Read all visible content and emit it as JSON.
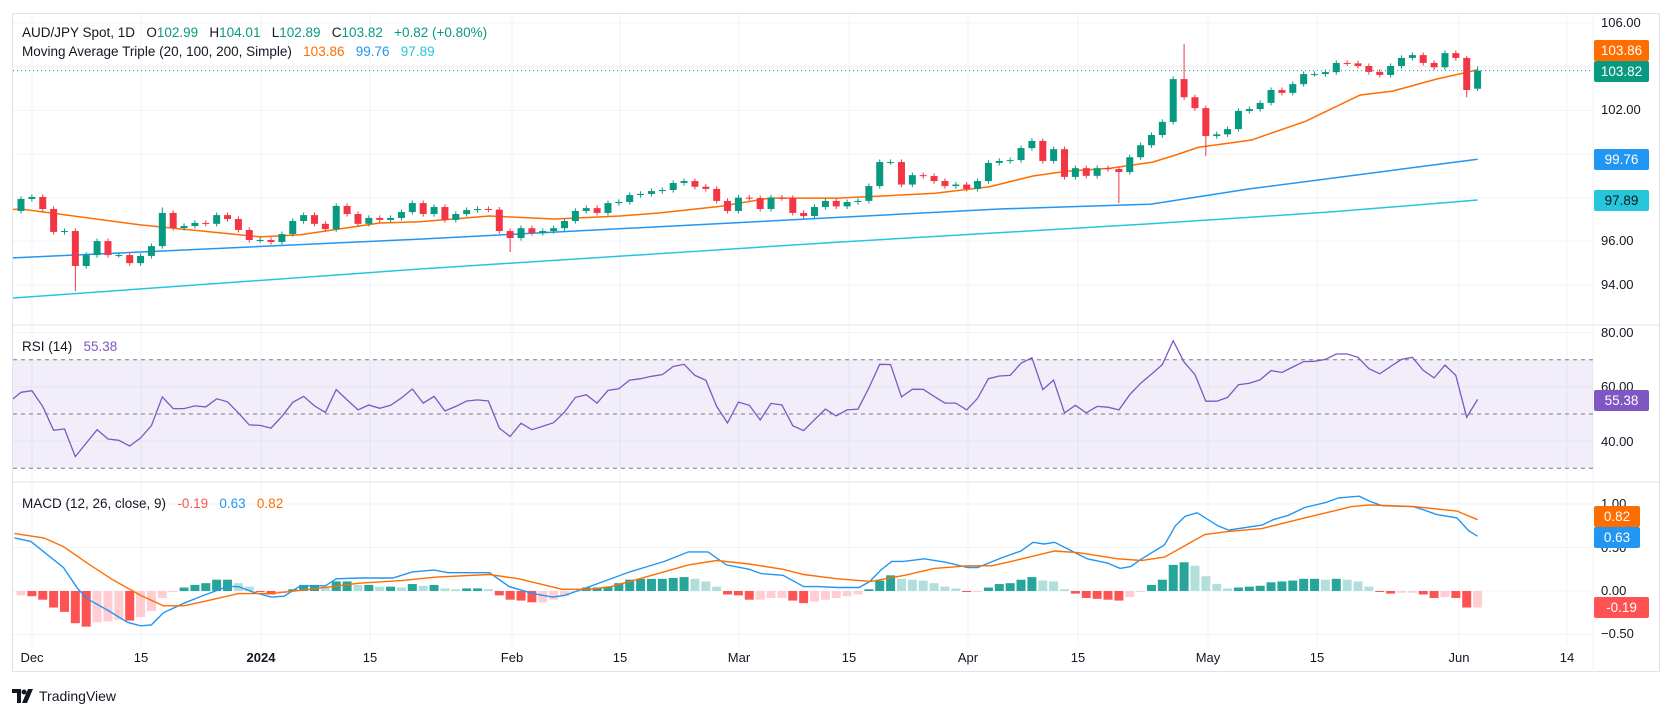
{
  "header": {
    "symbol": "AUD/JPY Spot, 1D",
    "o_label": "O",
    "open": "102.99",
    "h_label": "H",
    "high": "104.01",
    "l_label": "L",
    "low": "102.89",
    "c_label": "C",
    "close": "103.82",
    "change": "+0.82 (+0.80%)"
  },
  "ma_legend": {
    "title": "Moving Average Triple (20, 100, 200, Simple)",
    "v1": "103.86",
    "v2": "99.76",
    "v3": "97.89"
  },
  "rsi_legend": {
    "title": "RSI (14)",
    "value": "55.38"
  },
  "macd_legend": {
    "title": "MACD (12, 26, close, 9)",
    "hist": "-0.19",
    "macd": "0.63",
    "signal": "0.82"
  },
  "badges": {
    "sma20": "103.86",
    "price": "103.82",
    "sma100": "99.76",
    "sma200": "97.89",
    "rsi": "55.38",
    "signal": "0.82",
    "macd": "0.63",
    "hist": "-0.19"
  },
  "axes": {
    "price_ticks": [
      "106.00",
      "102.00",
      "96.00",
      "94.00"
    ],
    "rsi_ticks": [
      "80.00",
      "60.00",
      "40.00"
    ],
    "macd_ticks": [
      "1.00",
      "0.50",
      "0.00",
      "−0.50"
    ],
    "time_ticks": [
      "Dec",
      "15",
      "2024",
      "15",
      "Feb",
      "15",
      "Mar",
      "15",
      "Apr",
      "15",
      "May",
      "15",
      "Jun",
      "14"
    ]
  },
  "branding": {
    "logo_text": "TradingView"
  },
  "colors": {
    "up": "#089981",
    "down": "#F23645",
    "sma20": "#FF6D00",
    "sma100": "#2196F3",
    "sma200": "#26C6DA",
    "rsi": "#7E57C2",
    "macd": "#2196F3",
    "signal": "#FF6D00",
    "hist_up_strong": "#26A69A",
    "hist_up_weak": "#B2DFDB",
    "hist_down_strong": "#FF5252",
    "hist_down_weak": "#FFCDD2"
  },
  "chart_data": [
    {
      "type": "candlestick",
      "title": "AUD/JPY Spot, 1D",
      "ylim": [
        93.2,
        106.4
      ],
      "current_price": 103.82,
      "first_open": 97.39,
      "closes": [
        97.94,
        98.03,
        97.48,
        96.43,
        96.47,
        94.87,
        95.37,
        96.01,
        95.37,
        95.37,
        95.0,
        95.33,
        95.78,
        97.3,
        96.61,
        96.7,
        96.84,
        96.8,
        97.2,
        97.02,
        96.52,
        96.06,
        96.06,
        95.97,
        96.33,
        96.93,
        97.2,
        96.8,
        96.56,
        97.62,
        97.25,
        96.8,
        97.07,
        96.98,
        97.07,
        97.34,
        97.75,
        97.25,
        97.57,
        96.98,
        97.25,
        97.43,
        97.48,
        97.45,
        96.47,
        96.15,
        96.6,
        96.38,
        96.47,
        96.6,
        96.93,
        97.39,
        97.52,
        97.3,
        97.75,
        97.8,
        98.12,
        98.17,
        98.3,
        98.35,
        98.67,
        98.76,
        98.5,
        98.4,
        97.85,
        97.39,
        98.0,
        97.98,
        97.48,
        98.0,
        97.98,
        97.3,
        97.16,
        97.57,
        97.85,
        97.6,
        97.8,
        97.85,
        98.53,
        99.63,
        99.63,
        98.6,
        99.03,
        98.99,
        98.76,
        98.53,
        98.6,
        98.4,
        98.76,
        99.59,
        99.68,
        99.72,
        100.27,
        100.6,
        99.68,
        100.22,
        98.95,
        99.35,
        99.0,
        99.35,
        99.31,
        99.17,
        99.85,
        100.4,
        100.87,
        101.47,
        103.43,
        102.6,
        102.1,
        100.82,
        100.9,
        101.14,
        101.97,
        102.06,
        102.34,
        102.93,
        102.8,
        103.2,
        103.66,
        103.66,
        103.75,
        104.17,
        104.15,
        104.03,
        103.76,
        103.62,
        104.03,
        104.4,
        104.53,
        104.17,
        103.97,
        104.62,
        104.4,
        102.93,
        103.82
      ],
      "wick_overrides": [
        {
          "i": 5,
          "low": 93.72
        },
        {
          "i": 13,
          "high": 97.55
        },
        {
          "i": 45,
          "low": 95.51
        },
        {
          "i": 101,
          "low": 97.75
        },
        {
          "i": 107,
          "high": 105.04
        },
        {
          "i": 109,
          "low": 99.9
        },
        {
          "i": 133,
          "low": 102.6,
          "high": 104.5
        },
        {
          "i": 134,
          "open": 102.99,
          "high": 104.01,
          "low": 102.89
        }
      ],
      "overlays": [
        {
          "name": "SMA 20",
          "color_key": "sma20",
          "points": [
            [
              -0.8,
              97.45
            ],
            [
              0,
              97.48
            ],
            [
              11,
              96.75
            ],
            [
              22,
              96.2
            ],
            [
              25.7,
              96.3
            ],
            [
              33,
              96.84
            ],
            [
              36.7,
              96.9
            ],
            [
              43.1,
              97.16
            ],
            [
              49.1,
              97.02
            ],
            [
              55.1,
              97.16
            ],
            [
              58.8,
              97.3
            ],
            [
              64.3,
              97.6
            ],
            [
              68.9,
              97.98
            ],
            [
              75.1,
              97.98
            ],
            [
              79,
              98.07
            ],
            [
              84.1,
              98.2
            ],
            [
              89.1,
              98.5
            ],
            [
              93.1,
              98.99
            ],
            [
              96.1,
              99.2
            ],
            [
              100.2,
              99.35
            ],
            [
              104.1,
              99.63
            ],
            [
              106.2,
              99.95
            ],
            [
              108.3,
              100.3
            ],
            [
              113.2,
              100.64
            ],
            [
              118.2,
              101.5
            ],
            [
              123.2,
              102.7
            ],
            [
              126.2,
              102.88
            ],
            [
              130.2,
              103.43
            ],
            [
              133.2,
              103.76
            ],
            [
              134,
              103.86
            ]
          ]
        },
        {
          "name": "SMA 100",
          "color_key": "sma100",
          "points": [
            [
              -0.8,
              95.24
            ],
            [
              36.7,
              96.1
            ],
            [
              75.4,
              97.1
            ],
            [
              90,
              97.48
            ],
            [
              103.9,
              97.7
            ],
            [
              113,
              98.4
            ],
            [
              126.9,
              99.3
            ],
            [
              134,
              99.76
            ]
          ]
        },
        {
          "name": "SMA 200",
          "color_key": "sma200",
          "points": [
            [
              -0.8,
              93.4
            ],
            [
              36.7,
              94.73
            ],
            [
              75.4,
              95.97
            ],
            [
              103.9,
              96.8
            ],
            [
              120.7,
              97.35
            ],
            [
              134,
              97.89
            ]
          ]
        }
      ]
    },
    {
      "type": "line",
      "title": "RSI (14)",
      "ylim": [
        25,
        85
      ],
      "bands": {
        "upper": 70,
        "middle": 50,
        "lower": 30
      },
      "values": [
        54.7,
        58,
        58.6,
        52.8,
        44,
        44.5,
        34.3,
        39.3,
        44.2,
        40.8,
        40.3,
        38.2,
        41.2,
        45.7,
        56.3,
        52,
        52,
        53,
        52.6,
        55.6,
        54.5,
        50.4,
        46,
        45.8,
        44.8,
        49.1,
        54.3,
        56.5,
        53,
        50.6,
        59,
        55.2,
        51.5,
        53.3,
        52.1,
        53.2,
        55.9,
        59.2,
        54,
        56.5,
        51.1,
        52.8,
        54.8,
        55.2,
        54.8,
        44.8,
        41.7,
        46.6,
        44.2,
        45.5,
        46.8,
        50.7,
        56.1,
        57.1,
        54,
        58.7,
        59.3,
        62.5,
        63,
        63.9,
        64.5,
        67.5,
        68.3,
        64.2,
        62.5,
        52.8,
        46.7,
        54.4,
        53.2,
        47.8,
        53.9,
        53.3,
        45.7,
        43.9,
        47.9,
        51.8,
        49.3,
        51.5,
        51.8,
        59.6,
        68.3,
        68.2,
        56.3,
        59.1,
        59.1,
        56.5,
        54,
        54,
        51.5,
        55.8,
        63,
        64,
        64.2,
        68.7,
        70.7,
        59,
        62.5,
        50.4,
        53.2,
        50.4,
        52.8,
        52.5,
        51.5,
        57.1,
        61.3,
        64.7,
        68.2,
        77,
        69.1,
        64.5,
        54.7,
        54.7,
        56.1,
        60.8,
        61.3,
        62.6,
        66,
        65.3,
        67.3,
        69.3,
        69.4,
        70.1,
        72.1,
        72.1,
        70.9,
        66.7,
        64.8,
        67.5,
        70.1,
        70.9,
        66.1,
        63.3,
        68,
        64.2,
        48.8,
        55.38
      ]
    },
    {
      "type": "bar+line",
      "title": "MACD (12, 26, close, 9)",
      "ylim": [
        -0.65,
        1.25
      ],
      "histogram": [
        -0.05,
        -0.06,
        -0.1,
        -0.19,
        -0.24,
        -0.37,
        -0.41,
        -0.36,
        -0.35,
        -0.33,
        -0.34,
        -0.3,
        -0.23,
        -0.08,
        -0.01,
        0.04,
        0.07,
        0.09,
        0.13,
        0.13,
        0.09,
        0.05,
        -0.01,
        -0.04,
        -0.02,
        0.02,
        0.07,
        0.07,
        0.05,
        0.11,
        0.11,
        0.07,
        0.07,
        0.05,
        0.05,
        0.04,
        0.08,
        0.06,
        0.07,
        0.03,
        0.02,
        0.03,
        0.03,
        0.02,
        -0.05,
        -0.1,
        -0.11,
        -0.13,
        -0.13,
        -0.1,
        -0.06,
        -0.01,
        0.04,
        0.04,
        0.05,
        0.09,
        0.13,
        0.14,
        0.14,
        0.14,
        0.15,
        0.16,
        0.14,
        0.11,
        0.05,
        -0.04,
        -0.05,
        -0.1,
        -0.1,
        -0.08,
        -0.08,
        -0.11,
        -0.14,
        -0.12,
        -0.1,
        -0.08,
        -0.06,
        -0.04,
        0.02,
        0.12,
        0.18,
        0.14,
        0.13,
        0.12,
        0.09,
        0.05,
        0.03,
        -0.01,
        -0.01,
        0.04,
        0.08,
        0.09,
        0.13,
        0.16,
        0.12,
        0.11,
        0.02,
        -0.03,
        -0.08,
        -0.09,
        -0.1,
        -0.11,
        -0.07,
        -0.01,
        0.07,
        0.13,
        0.3,
        0.33,
        0.29,
        0.17,
        0.08,
        0.03,
        0.04,
        0.05,
        0.06,
        0.1,
        0.11,
        0.12,
        0.14,
        0.14,
        0.13,
        0.14,
        0.13,
        0.11,
        0.05,
        -0.01,
        -0.03,
        -0.02,
        -0.02,
        -0.04,
        -0.08,
        -0.07,
        -0.08,
        -0.19,
        -0.19
      ],
      "macd_line": [
        [
          -0.6,
          0.61
        ],
        [
          0.9,
          0.57
        ],
        [
          2.9,
          0.37
        ],
        [
          3.9,
          0.27
        ],
        [
          5.2,
          0.03
        ],
        [
          6.1,
          -0.09
        ],
        [
          8.1,
          -0.23
        ],
        [
          9.8,
          -0.36
        ],
        [
          11,
          -0.4
        ],
        [
          12,
          -0.39
        ],
        [
          13.1,
          -0.25
        ],
        [
          15,
          -0.14
        ],
        [
          16.8,
          -0.05
        ],
        [
          19,
          0.05
        ],
        [
          20,
          0.05
        ],
        [
          21.3,
          -0.01
        ],
        [
          23,
          -0.07
        ],
        [
          24.2,
          -0.06
        ],
        [
          25.7,
          0.06
        ],
        [
          28,
          0.06
        ],
        [
          29,
          0.14
        ],
        [
          31.1,
          0.15
        ],
        [
          34.2,
          0.15
        ],
        [
          36,
          0.22
        ],
        [
          38,
          0.24
        ],
        [
          39.3,
          0.21
        ],
        [
          43.1,
          0.21
        ],
        [
          44.9,
          0.05
        ],
        [
          47.1,
          -0.03
        ],
        [
          48.9,
          -0.07
        ],
        [
          50,
          -0.05
        ],
        [
          52.3,
          0.05
        ],
        [
          56,
          0.22
        ],
        [
          59.2,
          0.34
        ],
        [
          61.4,
          0.45
        ],
        [
          63.2,
          0.45
        ],
        [
          64.9,
          0.3
        ],
        [
          67,
          0.25
        ],
        [
          68.1,
          0.2
        ],
        [
          70.1,
          0.18
        ],
        [
          72,
          0.05
        ],
        [
          73.3,
          0.05
        ],
        [
          75.1,
          0.04
        ],
        [
          77.1,
          0.04
        ],
        [
          78.1,
          0.11
        ],
        [
          79.1,
          0.24
        ],
        [
          80.1,
          0.34
        ],
        [
          81.2,
          0.34
        ],
        [
          83.1,
          0.37
        ],
        [
          85.1,
          0.33
        ],
        [
          87.1,
          0.27
        ],
        [
          88,
          0.27
        ],
        [
          90.2,
          0.38
        ],
        [
          92,
          0.46
        ],
        [
          93.1,
          0.56
        ],
        [
          94.1,
          0.54
        ],
        [
          95.1,
          0.56
        ],
        [
          96.5,
          0.47
        ],
        [
          98.1,
          0.37
        ],
        [
          100,
          0.32
        ],
        [
          101.1,
          0.26
        ],
        [
          102.1,
          0.28
        ],
        [
          103.1,
          0.37
        ],
        [
          105.2,
          0.53
        ],
        [
          106.2,
          0.75
        ],
        [
          107.1,
          0.86
        ],
        [
          108.2,
          0.9
        ],
        [
          110.1,
          0.75
        ],
        [
          111.1,
          0.7
        ],
        [
          114.2,
          0.76
        ],
        [
          115.2,
          0.82
        ],
        [
          116.6,
          0.87
        ],
        [
          118.1,
          0.96
        ],
        [
          120.1,
          1.02
        ],
        [
          121.2,
          1.07
        ],
        [
          123.1,
          1.09
        ],
        [
          124.1,
          1.03
        ],
        [
          125.2,
          0.98
        ],
        [
          128.1,
          0.97
        ],
        [
          129.1,
          0.93
        ],
        [
          130.2,
          0.88
        ],
        [
          132.1,
          0.84
        ],
        [
          133.2,
          0.69
        ],
        [
          134,
          0.63
        ]
      ],
      "signal_line": [
        [
          -0.6,
          0.66
        ],
        [
          2.1,
          0.61
        ],
        [
          3.9,
          0.51
        ],
        [
          6.1,
          0.32
        ],
        [
          8.3,
          0.14
        ],
        [
          11,
          -0.05
        ],
        [
          13.1,
          -0.17
        ],
        [
          15,
          -0.17
        ],
        [
          17.2,
          -0.11
        ],
        [
          20,
          -0.03
        ],
        [
          23,
          -0.03
        ],
        [
          26.6,
          0.02
        ],
        [
          31.1,
          0.09
        ],
        [
          35,
          0.12
        ],
        [
          38.2,
          0.16
        ],
        [
          43.1,
          0.19
        ],
        [
          45.8,
          0.14
        ],
        [
          49.8,
          0.02
        ],
        [
          52.3,
          0.02
        ],
        [
          54.3,
          0.05
        ],
        [
          56.9,
          0.14
        ],
        [
          61.4,
          0.3
        ],
        [
          64,
          0.35
        ],
        [
          67,
          0.31
        ],
        [
          70.1,
          0.25
        ],
        [
          72,
          0.19
        ],
        [
          75.1,
          0.14
        ],
        [
          78.2,
          0.11
        ],
        [
          81.3,
          0.18
        ],
        [
          84,
          0.26
        ],
        [
          87.1,
          0.29
        ],
        [
          89.3,
          0.29
        ],
        [
          91.1,
          0.34
        ],
        [
          95.1,
          0.46
        ],
        [
          97.3,
          0.44
        ],
        [
          100.9,
          0.37
        ],
        [
          103.1,
          0.35
        ],
        [
          105.2,
          0.39
        ],
        [
          107.2,
          0.53
        ],
        [
          108.9,
          0.65
        ],
        [
          110.8,
          0.68
        ],
        [
          114.2,
          0.72
        ],
        [
          118.1,
          0.84
        ],
        [
          120.1,
          0.9
        ],
        [
          122.4,
          0.97
        ],
        [
          124.1,
          0.99
        ],
        [
          128.1,
          0.97
        ],
        [
          132.1,
          0.92
        ],
        [
          134,
          0.82
        ]
      ]
    }
  ]
}
